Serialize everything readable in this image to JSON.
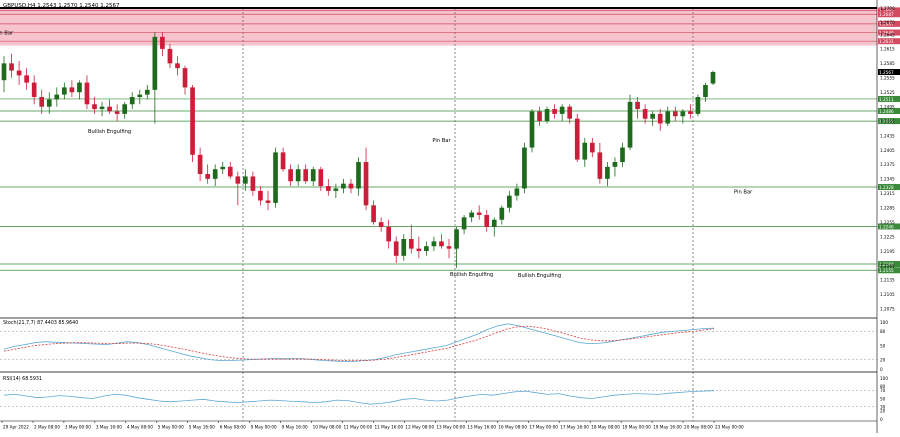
{
  "symbol_header": "GBPUSD,H4  1.2543 1.2570 1.2540 1.2567",
  "colors": {
    "bull": "#1e6b1e",
    "bear": "#cc1e3a",
    "zone": "#f7c3cc",
    "level_red": "#d24b60",
    "level_green": "#3a8a3a",
    "stoch_main": "#5aa8d6",
    "stoch_signal": "#d83a3a",
    "rsi": "#5aa8d6"
  },
  "price_axis": {
    "range": [
      1.206,
      1.27
    ],
    "ticks": [
      "1.2700",
      "1.2670",
      "1.2645",
      "1.2615",
      "1.2585",
      "1.2555",
      "1.2525",
      "1.2495",
      "1.2465",
      "1.2435",
      "1.2405",
      "1.2375",
      "1.2345",
      "1.2315",
      "1.2285",
      "1.2255",
      "1.2225",
      "1.2195",
      "1.2165",
      "1.2135",
      "1.2105",
      "1.2075"
    ]
  },
  "resistance_zone": {
    "from": 1.2622,
    "to": 1.27
  },
  "levels": [
    {
      "price": 1.2695,
      "label": "1.2695",
      "kind": "red"
    },
    {
      "price": 1.2687,
      "label": "1.2687",
      "kind": "red"
    },
    {
      "price": 1.2667,
      "label": "1.2667",
      "kind": "red"
    },
    {
      "price": 1.2649,
      "label": "1.2649",
      "kind": "red"
    },
    {
      "price": 1.2631,
      "label": "1.2631",
      "kind": "red"
    },
    {
      "price": 1.2511,
      "label": "1.2511",
      "kind": "green"
    },
    {
      "price": 1.2486,
      "label": "1.2486",
      "kind": "green"
    },
    {
      "price": 1.2465,
      "label": "1.2465",
      "kind": "green"
    },
    {
      "price": 1.2328,
      "label": "1.2328",
      "kind": "green"
    },
    {
      "price": 1.2246,
      "label": "1.2246",
      "kind": "green"
    },
    {
      "price": 1.2168,
      "label": "1.2168",
      "kind": "green"
    },
    {
      "price": 1.2155,
      "label": "1.2155",
      "kind": "green"
    }
  ],
  "current_price": "1.2567",
  "annotations": [
    {
      "text": "Pin Bar",
      "price": 1.2645,
      "bar": 0
    },
    {
      "text": "Bullish Engulfing",
      "price": 1.244,
      "bar": 14
    },
    {
      "text": "Pin Bar",
      "price": 1.2422,
      "bar": 58
    },
    {
      "text": "Bullish Engulfing",
      "price": 1.2143,
      "bar": 62
    },
    {
      "text": "Bullish Engulfing",
      "price": 1.2141,
      "bar": 71
    },
    {
      "text": "Pin Bar",
      "price": 1.2315,
      "bar": 98
    }
  ],
  "chart_data": {
    "type": "candlestick",
    "title": "GBPUSD,H4",
    "ohlc_header": "1.2543 1.2570 1.2540 1.2567",
    "x_labels": [
      "29 Apr 2022",
      "2 May 08:00",
      "3 May 00:00",
      "3 May 16:00",
      "4 May 08:00",
      "5 May 00:00",
      "5 May 16:00",
      "6 May 08:00",
      "9 May 00:00",
      "9 May 16:00",
      "10 May 08:00",
      "11 May 00:00",
      "11 May 16:00",
      "12 May 08:00",
      "13 May 00:00",
      "13 May 16:00",
      "16 May 08:00",
      "17 May 00:00",
      "17 May 16:00",
      "18 May 08:00",
      "19 May 00:00",
      "19 May 16:00",
      "20 May 08:00",
      "23 May 00:00"
    ],
    "candles": [
      [
        1.255,
        1.26,
        1.2525,
        1.2585
      ],
      [
        1.2585,
        1.2605,
        1.2555,
        1.257
      ],
      [
        1.257,
        1.259,
        1.254,
        1.256
      ],
      [
        1.256,
        1.2575,
        1.253,
        1.2545
      ],
      [
        1.2545,
        1.256,
        1.25,
        1.2515
      ],
      [
        1.2515,
        1.253,
        1.248,
        1.2495
      ],
      [
        1.2495,
        1.2525,
        1.248,
        1.251
      ],
      [
        1.251,
        1.2535,
        1.2495,
        1.252
      ],
      [
        1.252,
        1.2545,
        1.251,
        1.2535
      ],
      [
        1.2535,
        1.255,
        1.2515,
        1.2525
      ],
      [
        1.2525,
        1.255,
        1.251,
        1.2545
      ],
      [
        1.2545,
        1.256,
        1.249,
        1.25
      ],
      [
        1.25,
        1.2515,
        1.248,
        1.249
      ],
      [
        1.249,
        1.2505,
        1.2475,
        1.2495
      ],
      [
        1.2495,
        1.251,
        1.248,
        1.2485
      ],
      [
        1.2485,
        1.25,
        1.2465,
        1.248
      ],
      [
        1.248,
        1.2505,
        1.247,
        1.25
      ],
      [
        1.25,
        1.2525,
        1.249,
        1.2515
      ],
      [
        1.2515,
        1.253,
        1.25,
        1.252
      ],
      [
        1.252,
        1.254,
        1.251,
        1.253
      ],
      [
        1.253,
        1.265,
        1.246,
        1.264
      ],
      [
        1.264,
        1.265,
        1.26,
        1.2615
      ],
      [
        1.2615,
        1.2625,
        1.2575,
        1.2585
      ],
      [
        1.2585,
        1.26,
        1.256,
        1.2575
      ],
      [
        1.2575,
        1.258,
        1.252,
        1.2535
      ],
      [
        1.2535,
        1.254,
        1.238,
        1.2395
      ],
      [
        1.2395,
        1.241,
        1.234,
        1.2355
      ],
      [
        1.2355,
        1.2375,
        1.2335,
        1.2345
      ],
      [
        1.2345,
        1.2375,
        1.233,
        1.2365
      ],
      [
        1.2365,
        1.238,
        1.2355,
        1.237
      ],
      [
        1.237,
        1.238,
        1.2345,
        1.235
      ],
      [
        1.235,
        1.236,
        1.229,
        1.2335
      ],
      [
        1.2335,
        1.2365,
        1.232,
        1.235
      ],
      [
        1.235,
        1.236,
        1.231,
        1.232
      ],
      [
        1.232,
        1.233,
        1.229,
        1.23
      ],
      [
        1.23,
        1.232,
        1.228,
        1.2295
      ],
      [
        1.2295,
        1.241,
        1.2285,
        1.24
      ],
      [
        1.24,
        1.241,
        1.236,
        1.2365
      ],
      [
        1.2365,
        1.2375,
        1.233,
        1.234
      ],
      [
        1.234,
        1.2375,
        1.233,
        1.2365
      ],
      [
        1.2365,
        1.2375,
        1.2335,
        1.234
      ],
      [
        1.234,
        1.237,
        1.233,
        1.2365
      ],
      [
        1.2365,
        1.237,
        1.232,
        1.233
      ],
      [
        1.233,
        1.2345,
        1.231,
        1.232
      ],
      [
        1.232,
        1.2335,
        1.2305,
        1.2325
      ],
      [
        1.2325,
        1.2345,
        1.2315,
        1.2335
      ],
      [
        1.2335,
        1.2345,
        1.2315,
        1.2325
      ],
      [
        1.2325,
        1.239,
        1.231,
        1.238
      ],
      [
        1.238,
        1.241,
        1.228,
        1.229
      ],
      [
        1.229,
        1.23,
        1.225,
        1.2255
      ],
      [
        1.2255,
        1.2265,
        1.2235,
        1.2245
      ],
      [
        1.2245,
        1.226,
        1.22,
        1.2215
      ],
      [
        1.2215,
        1.2225,
        1.217,
        1.2185
      ],
      [
        1.2185,
        1.223,
        1.2175,
        1.222
      ],
      [
        1.222,
        1.225,
        1.219,
        1.22
      ],
      [
        1.22,
        1.2225,
        1.218,
        1.2195
      ],
      [
        1.2195,
        1.2215,
        1.2185,
        1.2205
      ],
      [
        1.2205,
        1.2225,
        1.2195,
        1.2215
      ],
      [
        1.2215,
        1.223,
        1.22,
        1.2205
      ],
      [
        1.2205,
        1.222,
        1.218,
        1.22
      ],
      [
        1.22,
        1.2245,
        1.216,
        1.224
      ],
      [
        1.224,
        1.227,
        1.223,
        1.2265
      ],
      [
        1.2265,
        1.228,
        1.2255,
        1.2275
      ],
      [
        1.2275,
        1.229,
        1.226,
        1.227
      ],
      [
        1.227,
        1.228,
        1.2235,
        1.2245
      ],
      [
        1.2245,
        1.2265,
        1.2225,
        1.226
      ],
      [
        1.226,
        1.229,
        1.225,
        1.2285
      ],
      [
        1.2285,
        1.232,
        1.2275,
        1.231
      ],
      [
        1.231,
        1.2335,
        1.23,
        1.2325
      ],
      [
        1.2325,
        1.242,
        1.2315,
        1.241
      ],
      [
        1.241,
        1.249,
        1.24,
        1.2485
      ],
      [
        1.2485,
        1.2495,
        1.2455,
        1.2465
      ],
      [
        1.2465,
        1.2495,
        1.246,
        1.249
      ],
      [
        1.249,
        1.25,
        1.247,
        1.248
      ],
      [
        1.248,
        1.25,
        1.2465,
        1.2495
      ],
      [
        1.2495,
        1.25,
        1.246,
        1.247
      ],
      [
        1.247,
        1.248,
        1.238,
        1.2385
      ],
      [
        1.2385,
        1.243,
        1.237,
        1.242
      ],
      [
        1.242,
        1.243,
        1.239,
        1.24
      ],
      [
        1.24,
        1.242,
        1.2335,
        1.2345
      ],
      [
        1.2345,
        1.238,
        1.233,
        1.237
      ],
      [
        1.237,
        1.239,
        1.235,
        1.238
      ],
      [
        1.238,
        1.242,
        1.237,
        1.241
      ],
      [
        1.241,
        1.252,
        1.2405,
        1.2505
      ],
      [
        1.2505,
        1.2515,
        1.247,
        1.249
      ],
      [
        1.249,
        1.25,
        1.246,
        1.247
      ],
      [
        1.247,
        1.2485,
        1.2455,
        1.248
      ],
      [
        1.248,
        1.249,
        1.2445,
        1.246
      ],
      [
        1.246,
        1.2495,
        1.2455,
        1.2485
      ],
      [
        1.2485,
        1.2495,
        1.2465,
        1.2475
      ],
      [
        1.2475,
        1.249,
        1.246,
        1.2485
      ],
      [
        1.2485,
        1.25,
        1.247,
        1.248
      ],
      [
        1.248,
        1.252,
        1.2475,
        1.2515
      ],
      [
        1.2515,
        1.2545,
        1.2505,
        1.254
      ],
      [
        1.2543,
        1.257,
        1.254,
        1.2567
      ]
    ],
    "stochastic": {
      "label": "Stoch(21,7,7) 87.4403 85.9640",
      "levels": [
        100,
        80,
        50,
        20,
        0
      ],
      "main": [
        42,
        48,
        52,
        56,
        58,
        57,
        56,
        55,
        54,
        53,
        52,
        55,
        58,
        56,
        52,
        46,
        40,
        34,
        28,
        24,
        20,
        18,
        18,
        19,
        20,
        21,
        22,
        22,
        22,
        22,
        20,
        18,
        17,
        16,
        16,
        18,
        20,
        24,
        30,
        34,
        38,
        42,
        46,
        50,
        58,
        66,
        74,
        84,
        92,
        96,
        92,
        86,
        80,
        74,
        68,
        62,
        56,
        54,
        55,
        58,
        62,
        66,
        70,
        74,
        78,
        80,
        82,
        84,
        86,
        87
      ],
      "signal": [
        38,
        42,
        46,
        50,
        52,
        54,
        55,
        56,
        56,
        55,
        54,
        54,
        55,
        55,
        54,
        52,
        48,
        44,
        40,
        35,
        31,
        27,
        24,
        22,
        21,
        21,
        21,
        21,
        21,
        21,
        21,
        20,
        19,
        18,
        18,
        18,
        19,
        21,
        24,
        28,
        32,
        36,
        40,
        44,
        50,
        56,
        62,
        70,
        78,
        86,
        90,
        91,
        88,
        84,
        78,
        72,
        66,
        62,
        60,
        60,
        62,
        64,
        67,
        70,
        73,
        76,
        78,
        80,
        83,
        86
      ]
    },
    "rsi": {
      "label": "RSI(14) 68.5931",
      "levels": [
        100,
        80,
        70,
        50,
        30,
        20,
        0
      ],
      "values": [
        58,
        60,
        56,
        52,
        54,
        57,
        55,
        52,
        50,
        56,
        60,
        58,
        52,
        48,
        44,
        42,
        44,
        46,
        48,
        44,
        42,
        40,
        42,
        44,
        46,
        45,
        43,
        42,
        40,
        42,
        46,
        45,
        40,
        36,
        38,
        42,
        48,
        50,
        46,
        44,
        46,
        52,
        56,
        60,
        58,
        62,
        66,
        68,
        64,
        60,
        62,
        56,
        52,
        50,
        54,
        58,
        60,
        62,
        61,
        60,
        63,
        65,
        67,
        68,
        69
      ]
    }
  }
}
